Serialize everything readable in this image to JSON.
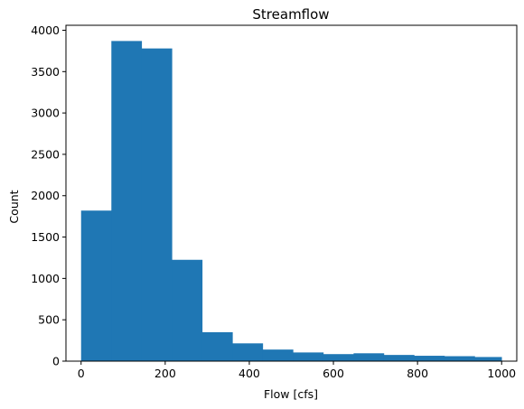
{
  "chart_data": {
    "type": "bar",
    "title": "Streamflow",
    "xlabel": "Flow [cfs]",
    "ylabel": "Count",
    "xlim": [
      -36,
      1036
    ],
    "ylim": [
      0,
      4060
    ],
    "bins": [
      {
        "x0": 0,
        "x1": 72,
        "count": 1820
      },
      {
        "x0": 72,
        "x1": 144,
        "count": 3870
      },
      {
        "x0": 144,
        "x1": 216,
        "count": 3780
      },
      {
        "x0": 216,
        "x1": 288,
        "count": 1225
      },
      {
        "x0": 288,
        "x1": 360,
        "count": 350
      },
      {
        "x0": 360,
        "x1": 432,
        "count": 215
      },
      {
        "x0": 432,
        "x1": 504,
        "count": 140
      },
      {
        "x0": 504,
        "x1": 576,
        "count": 105
      },
      {
        "x0": 576,
        "x1": 648,
        "count": 85
      },
      {
        "x0": 648,
        "x1": 720,
        "count": 95
      },
      {
        "x0": 720,
        "x1": 792,
        "count": 75
      },
      {
        "x0": 792,
        "x1": 864,
        "count": 65
      },
      {
        "x0": 864,
        "x1": 936,
        "count": 60
      },
      {
        "x0": 936,
        "x1": 1000,
        "count": 50
      }
    ],
    "xticks": [
      0,
      200,
      400,
      600,
      800,
      1000
    ],
    "yticks": [
      0,
      500,
      1000,
      1500,
      2000,
      2500,
      3000,
      3500,
      4000
    ],
    "bar_color": "#1f77b4",
    "grid": false,
    "legend": "none"
  }
}
